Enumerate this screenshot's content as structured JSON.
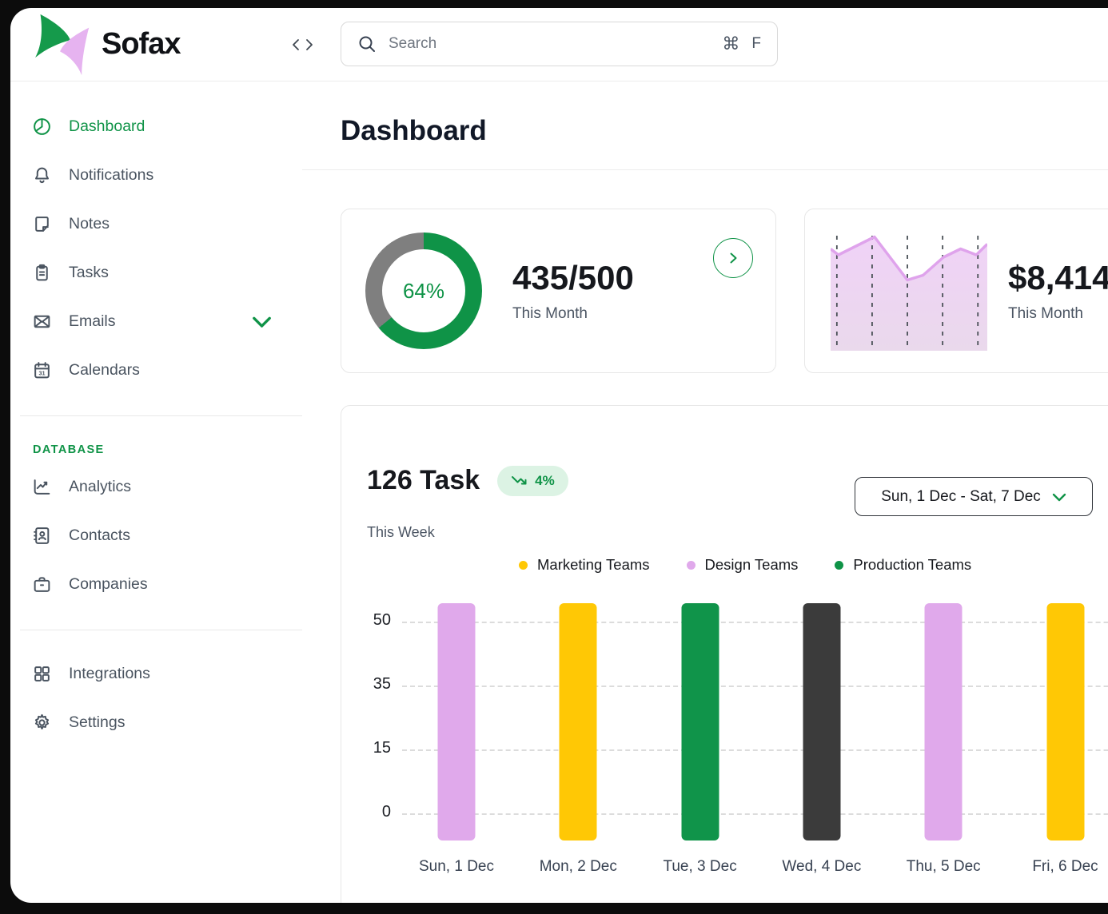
{
  "brand": {
    "name": "Sofax"
  },
  "topbar": {
    "search": {
      "placeholder": "Search",
      "shortcut_modifier": "⌘",
      "shortcut_key": "F"
    }
  },
  "sidebar": {
    "main_items": [
      {
        "label": "Dashboard",
        "icon": "pie-chart-icon",
        "active": true
      },
      {
        "label": "Notifications",
        "icon": "bell-icon"
      },
      {
        "label": "Notes",
        "icon": "note-icon"
      },
      {
        "label": "Tasks",
        "icon": "clipboard-icon"
      },
      {
        "label": "Emails",
        "icon": "envelope-icon",
        "expandable": true
      },
      {
        "label": "Calendars",
        "icon": "calendar-icon"
      }
    ],
    "section_label": "DATABASE",
    "database_items": [
      {
        "label": "Analytics",
        "icon": "line-chart-icon"
      },
      {
        "label": "Contacts",
        "icon": "address-book-icon"
      },
      {
        "label": "Companies",
        "icon": "briefcase-icon"
      }
    ],
    "footer_items": [
      {
        "label": "Integrations",
        "icon": "grid-icon"
      },
      {
        "label": "Settings",
        "icon": "gear-icon"
      }
    ]
  },
  "page": {
    "title": "Dashboard"
  },
  "tasks": {
    "title": "126 Task",
    "badge_value": "4%",
    "badge_trend": "down",
    "badge_bg": "#dcf3e4",
    "caption": "This Week",
    "date_range": "Sun, 1 Dec - Sat, 7 Dec",
    "legend": [
      {
        "label": "Marketing Teams",
        "color": "#ffc805"
      },
      {
        "label": "Design Teams",
        "color": "#e0a9eb"
      },
      {
        "label": "Production Teams",
        "color": "#0f9347"
      }
    ]
  },
  "colors": {
    "brand_green": "#0f9347",
    "brand_pink": "#e6b3f0",
    "bar_yellow": "#ffc805",
    "bar_pink": "#e0a9eb",
    "bar_green": "#10944a",
    "bar_dark": "#3b3b3b"
  },
  "chart_data": [
    {
      "type": "donut",
      "center_label": "64%",
      "value_percent": 64,
      "primary_text": "435/500",
      "caption": "This Month",
      "segment_color": "#0f9347",
      "track_color": "#7f7f7f"
    },
    {
      "type": "area",
      "primary_text": "$8,414",
      "caption": "This Month",
      "x_rel": [
        0,
        5,
        28,
        49,
        59,
        72,
        83,
        93,
        100
      ],
      "y_rel": [
        85,
        80,
        95,
        59,
        63,
        78,
        85,
        80,
        89
      ],
      "line_color": "#dfa3ec",
      "fill_top": "#f0d2f7",
      "fill_bottom": "#ead9ec",
      "gridline_x_rel": [
        4,
        26.5,
        49,
        71.5,
        94
      ],
      "grid": "vertical-dashed"
    },
    {
      "type": "bar",
      "title": "126 Task",
      "caption": "This Week",
      "categories": [
        "Sun, 1 Dec",
        "Mon, 2 Dec",
        "Tue, 3 Dec",
        "Wed, 4 Dec",
        "Thu, 5 Dec",
        "Fri, 6 Dec"
      ],
      "values": [
        55,
        55,
        55,
        55,
        55,
        55
      ],
      "bar_colors": [
        "#e0a9eb",
        "#ffc805",
        "#10944a",
        "#3b3b3b",
        "#e0a9eb",
        "#ffc805"
      ],
      "y_ticks_top_to_bottom": [
        50,
        35,
        15,
        0
      ],
      "ylim": [
        0,
        55
      ],
      "grid": "horizontal-dashed",
      "legend_entries": [
        "Marketing Teams",
        "Design Teams",
        "Production Teams"
      ],
      "legend_position": "top"
    }
  ]
}
